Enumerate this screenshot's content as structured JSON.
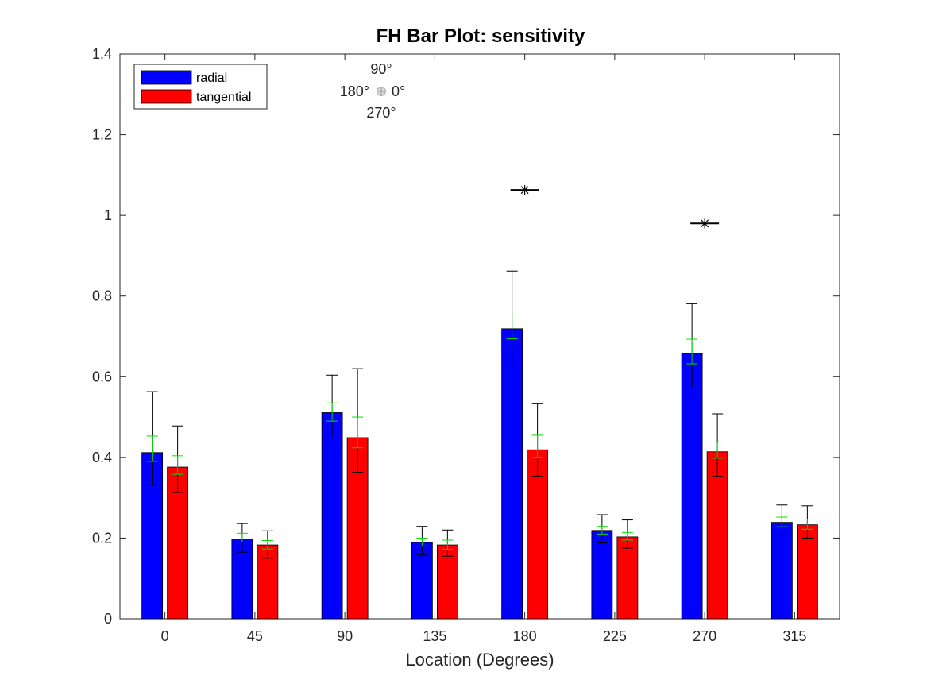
{
  "chart_data": {
    "type": "bar",
    "title": "FH Bar Plot: sensitivity",
    "xlabel": "Location (Degrees)",
    "ylabel": "",
    "ylim": [
      0,
      1.4
    ],
    "yticks": [
      "0",
      "0.2",
      "0.4",
      "0.6",
      "0.8",
      "1",
      "1.2",
      "1.4"
    ],
    "categories": [
      "0",
      "45",
      "90",
      "135",
      "180",
      "225",
      "270",
      "315"
    ],
    "series": [
      {
        "name": "radial",
        "color": "#0000ff",
        "values": [
          0.412,
          0.198,
          0.511,
          0.189,
          0.719,
          0.219,
          0.658,
          0.239
        ],
        "err_lower": [
          0.33,
          0.165,
          0.448,
          0.158,
          0.628,
          0.188,
          0.572,
          0.208
        ],
        "err_upper": [
          0.563,
          0.236,
          0.604,
          0.229,
          0.862,
          0.258,
          0.781,
          0.282
        ],
        "sem_lower": [
          0.39,
          0.19,
          0.49,
          0.18,
          0.694,
          0.21,
          0.632,
          0.228
        ],
        "sem_upper": [
          0.453,
          0.212,
          0.535,
          0.2,
          0.763,
          0.229,
          0.693,
          0.252
        ]
      },
      {
        "name": "tangential",
        "color": "#ff0000",
        "values": [
          0.376,
          0.183,
          0.449,
          0.183,
          0.419,
          0.203,
          0.414,
          0.233
        ],
        "err_lower": [
          0.313,
          0.15,
          0.363,
          0.155,
          0.353,
          0.175,
          0.353,
          0.2
        ],
        "err_upper": [
          0.478,
          0.218,
          0.62,
          0.22,
          0.533,
          0.245,
          0.508,
          0.28
        ],
        "sem_lower": [
          0.358,
          0.173,
          0.424,
          0.172,
          0.4,
          0.195,
          0.398,
          0.222
        ],
        "sem_upper": [
          0.404,
          0.194,
          0.5,
          0.195,
          0.455,
          0.214,
          0.438,
          0.247
        ]
      }
    ],
    "significance_markers": [
      {
        "category": "180",
        "y": 1.063,
        "symbol": "*"
      },
      {
        "category": "270",
        "y": 0.98,
        "symbol": "*"
      }
    ],
    "legend_position": "top-left",
    "compass": {
      "top": "90°",
      "left": "180°",
      "right": "0°",
      "bottom": "270°"
    },
    "colors": {
      "error_bar": "#000000",
      "sem_bar": "#00e000",
      "axis": "#262626"
    }
  }
}
